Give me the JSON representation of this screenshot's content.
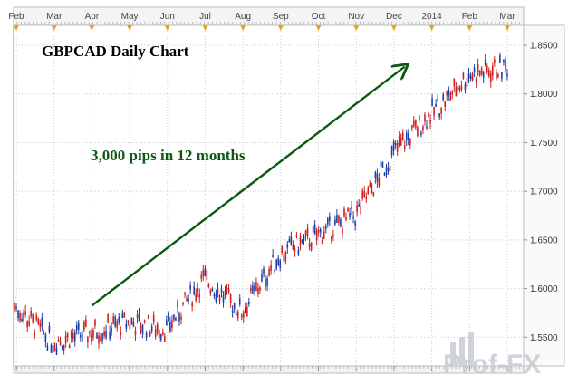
{
  "chart_data": {
    "type": "candlestick",
    "title": "GBPCAD Daily Chart",
    "annotation": "3,000 pips in 12 months",
    "watermark": "Prof-FX",
    "xlabel": "",
    "ylabel": "",
    "ylim": [
      1.5205,
      1.8705
    ],
    "y_ticks": [
      "1.5500",
      "1.6000",
      "1.6500",
      "1.7000",
      "1.7500",
      "1.8000",
      "1.8500"
    ],
    "x_ticks": [
      "Feb",
      "Mar",
      "Apr",
      "May",
      "Jun",
      "Jul",
      "Aug",
      "Sep",
      "Oct",
      "Nov",
      "Dec",
      "2014",
      "Feb",
      "Mar"
    ],
    "grid": true,
    "colors": {
      "up": "#1f3fa8",
      "down": "#d01f1f",
      "arrow": "#0a5a12",
      "grid": "#c9ced6",
      "event_marker": "#e8a317"
    },
    "trend_arrow": {
      "from": {
        "period": "Apr",
        "price": 1.5825
      },
      "to": {
        "period": "2014",
        "price": 1.828
      }
    },
    "price_path": [
      {
        "period": "Feb",
        "close": 1.582
      },
      {
        "period": "Mar",
        "close": 1.545
      },
      {
        "period": "Apr",
        "close": 1.555
      },
      {
        "period": "May",
        "close": 1.565
      },
      {
        "period": "Jun",
        "close": 1.558
      },
      {
        "period": "Jul",
        "close": 1.61
      },
      {
        "period": "Aug",
        "close": 1.576
      },
      {
        "period": "Sep",
        "close": 1.635
      },
      {
        "period": "Oct",
        "close": 1.655
      },
      {
        "period": "Nov",
        "close": 1.675
      },
      {
        "period": "Dec",
        "close": 1.74
      },
      {
        "period": "2014",
        "close": 1.78
      },
      {
        "period": "Feb",
        "close": 1.82
      },
      {
        "period": "Mar",
        "close": 1.828
      }
    ]
  }
}
